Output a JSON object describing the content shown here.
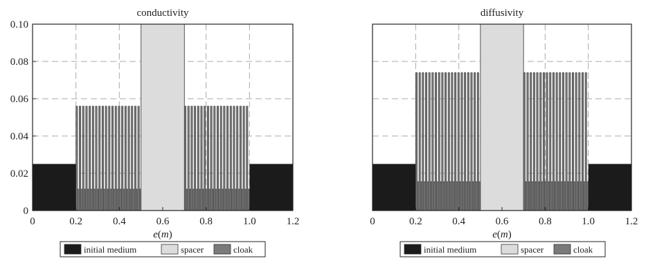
{
  "colors": {
    "initial_medium": "#1b1b1b",
    "spacer": "#dcdcdc",
    "cloak": "#7a7a7a",
    "grid": "#a9a9a9"
  },
  "chart_data": [
    {
      "type": "bar",
      "title": "conductivity",
      "xlabel_main": "e",
      "xlabel_unit": "(m)",
      "xlim": [
        0,
        1.2
      ],
      "ylim": [
        0,
        0.1
      ],
      "xticks": [
        "0",
        "0.2",
        "0.4",
        "0.6",
        "0.8",
        "1.0",
        "1.2"
      ],
      "yticks": [
        "0",
        "0.02",
        "0.04",
        "0.06",
        "0.08",
        "0.10"
      ],
      "grid": true,
      "legend_position": "bottom",
      "legend": [
        "initial medium",
        "spacer",
        "cloak"
      ],
      "initial_medium": [
        {
          "x0": 0.0,
          "x1": 0.2,
          "value": 0.025
        },
        {
          "x0": 1.0,
          "x1": 1.2,
          "value": 0.025
        }
      ],
      "spacer": {
        "x0": 0.5,
        "x1": 0.7,
        "value": 0.1
      },
      "cloak": {
        "regions": [
          [
            0.2,
            0.5
          ],
          [
            0.7,
            1.0
          ]
        ],
        "layers_per_region": 20,
        "tall_value": 0.056,
        "short_value": 0.0115
      }
    },
    {
      "type": "bar",
      "title": "diffusivity",
      "xlabel_main": "e",
      "xlabel_unit": "(m)",
      "xlim": [
        0,
        1.2
      ],
      "ylim": [
        0,
        0.1
      ],
      "xticks": [
        "0",
        "0.2",
        "0.4",
        "0.6",
        "0.8",
        "1.0",
        "1.2"
      ],
      "yticks": [],
      "grid": true,
      "legend_position": "bottom",
      "legend": [
        "initial medium",
        "spacer",
        "cloak"
      ],
      "initial_medium": [
        {
          "x0": 0.0,
          "x1": 0.2,
          "value": 0.025
        },
        {
          "x0": 1.0,
          "x1": 1.2,
          "value": 0.025
        }
      ],
      "spacer": {
        "x0": 0.5,
        "x1": 0.7,
        "value": 0.1
      },
      "cloak": {
        "regions": [
          [
            0.2,
            0.5
          ],
          [
            0.7,
            1.0
          ]
        ],
        "layers_per_region": 20,
        "tall_value": 0.074,
        "short_value": 0.0155
      }
    }
  ]
}
